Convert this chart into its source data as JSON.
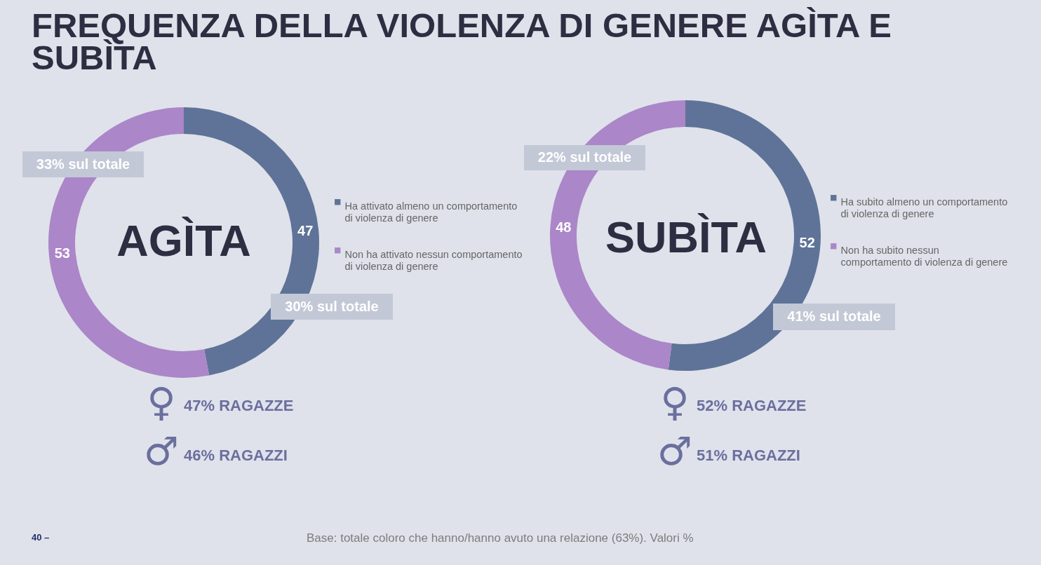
{
  "chart_data": [
    {
      "type": "donut",
      "title": "FREQUENZA DELLA VIOLENZA DI GENERE AGÌTA E SUBÌTA",
      "categories": [
        "Ha attivato almeno un comportamento di violenza di genere",
        "Non ha attivato nessun comportamento di violenza di genere"
      ],
      "values": [
        47,
        53
      ],
      "colors": [
        "#5f7398",
        "#ab86c8"
      ],
      "data_labels": true,
      "legend": "right",
      "annotations": [
        "AGÌTA",
        "30% sul totale",
        "33% sul totale",
        "♀",
        "47% RAGAZZE",
        "♂",
        "46% RAGAZZI",
        "40 –",
        "Base: totale coloro che hanno/hanno avuto una relazione (63%). Valori %"
      ]
    },
    {
      "type": "donut",
      "categories": [
        "Ha subito almeno un comportamento di violenza di genere",
        "Non ha subito nessun comportamento di violenza di genere"
      ],
      "values": [
        52,
        48
      ],
      "colors": [
        "#5f7398",
        "#ab86c8"
      ],
      "data_labels": true,
      "legend": "right",
      "annotations": [
        "SUBÌTA",
        "41% sul totale",
        "22% sul totale",
        "♀",
        "52% RAGAZZE",
        "♂",
        "51% RAGAZZI"
      ]
    }
  ]
}
